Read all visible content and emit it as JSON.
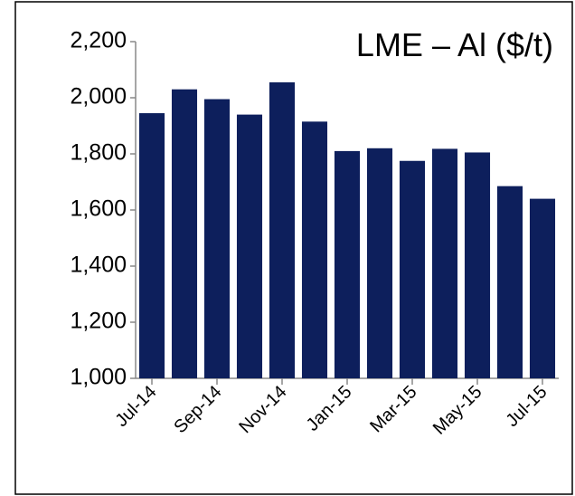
{
  "chart_data": {
    "type": "bar",
    "title": "LME – Al ($/t)",
    "categories": [
      "Jul-14",
      null,
      "Sep-14",
      null,
      "Nov-14",
      null,
      "Jan-15",
      null,
      "Mar-15",
      null,
      "May-15",
      null,
      "Jul-15"
    ],
    "values": [
      1945,
      2030,
      1995,
      1940,
      2055,
      1915,
      1810,
      1820,
      1775,
      1818,
      1805,
      1685,
      1640
    ],
    "color": "#0d1f5c",
    "ylim": [
      1000,
      2200
    ],
    "yticks": [
      {
        "value": 1000,
        "label": "1,000"
      },
      {
        "value": 1200,
        "label": "1,200"
      },
      {
        "value": 1400,
        "label": "1,400"
      },
      {
        "value": 1600,
        "label": "1,600"
      },
      {
        "value": 1800,
        "label": "1,800"
      },
      {
        "value": 2000,
        "label": "2,000"
      },
      {
        "value": 2200,
        "label": "2,200"
      }
    ]
  }
}
